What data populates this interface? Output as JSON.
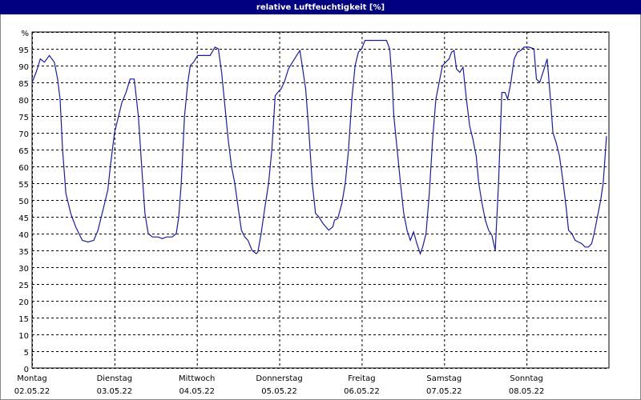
{
  "chart_data": {
    "type": "line",
    "title": "relative Luftfeuchtigkeit [%]",
    "x": [
      0,
      0.05,
      0.1,
      0.15,
      0.21,
      0.27,
      0.31,
      0.34,
      0.37,
      0.41,
      0.47,
      0.53,
      0.61,
      0.68,
      0.75,
      0.8,
      0.86,
      0.92,
      0.95,
      1.0,
      1.05,
      1.09,
      1.14,
      1.19,
      1.24,
      1.29,
      1.33,
      1.37,
      1.41,
      1.46,
      1.53,
      1.58,
      1.63,
      1.7,
      1.75,
      1.78,
      1.81,
      1.85,
      1.89,
      1.92,
      1.96,
      2.01,
      2.09,
      2.16,
      2.22,
      2.26,
      2.3,
      2.34,
      2.38,
      2.42,
      2.46,
      2.5,
      2.54,
      2.58,
      2.62,
      2.67,
      2.72,
      2.74,
      2.78,
      2.82,
      2.87,
      2.91,
      2.95,
      2.98,
      3.02,
      3.06,
      3.11,
      3.16,
      3.21,
      3.25,
      3.29,
      3.32,
      3.36,
      3.4,
      3.44,
      3.48,
      3.53,
      3.6,
      3.65,
      3.67,
      3.71,
      3.76,
      3.8,
      3.84,
      3.88,
      3.92,
      3.96,
      4.0,
      4.04,
      4.13,
      4.23,
      4.3,
      4.34,
      4.37,
      4.39,
      4.43,
      4.47,
      4.51,
      4.55,
      4.59,
      4.63,
      4.67,
      4.71,
      4.74,
      4.78,
      4.82,
      4.86,
      4.9,
      4.94,
      4.98,
      5.02,
      5.06,
      5.09,
      5.12,
      5.15,
      5.19,
      5.23,
      5.27,
      5.31,
      5.35,
      5.39,
      5.42,
      5.46,
      5.5,
      5.54,
      5.58,
      5.62,
      5.66,
      5.7,
      5.74,
      5.77,
      5.81,
      5.85,
      5.89,
      5.93,
      5.97,
      6.03,
      6.09,
      6.12,
      6.16,
      6.2,
      6.25,
      6.29,
      6.32,
      6.36,
      6.4,
      6.44,
      6.48,
      6.51,
      6.55,
      6.59,
      6.63,
      6.67,
      6.71,
      6.75,
      6.79,
      6.82,
      6.86,
      6.9,
      6.93,
      6.95,
      6.97
    ],
    "series": [
      {
        "color": "#1a1ab8",
        "values": [
          85,
          88,
          92,
          91,
          93,
          91,
          86,
          80,
          65,
          52,
          46,
          42,
          38,
          37.5,
          38,
          41,
          47,
          53,
          60,
          70,
          75,
          79,
          82,
          86,
          86,
          75,
          60,
          46,
          40,
          39,
          39,
          38.5,
          39,
          39,
          40,
          45,
          55,
          75,
          85,
          90,
          91,
          93,
          93,
          93,
          95.5,
          95,
          88,
          78,
          68,
          60,
          55,
          48,
          41,
          39,
          38,
          35,
          34,
          34.5,
          40,
          47,
          55,
          65,
          81,
          82,
          83,
          85,
          89,
          91,
          93,
          94.5,
          88,
          83,
          70,
          55,
          46,
          45,
          43,
          41,
          42,
          44,
          44.5,
          49,
          55,
          65,
          80,
          90,
          94,
          95,
          97.5,
          97.5,
          97.5,
          97.5,
          95,
          85,
          75,
          65,
          55,
          46,
          41,
          38,
          40.5,
          37,
          34,
          36,
          40,
          52,
          68,
          80,
          85,
          90,
          91,
          92,
          94,
          94.5,
          89,
          88,
          89.5,
          80,
          72,
          68,
          63,
          55,
          49,
          44,
          41,
          39.5,
          35,
          55,
          82,
          82,
          80,
          85,
          92,
          94,
          94.5,
          95.5,
          95.5,
          95,
          86,
          85,
          88,
          92,
          80,
          70,
          67,
          63,
          56,
          48,
          41,
          40,
          38,
          37.5,
          37,
          36,
          36,
          37,
          40,
          45,
          50,
          55,
          62,
          69
        ]
      }
    ],
    "xlim": [
      0,
      7
    ],
    "xticks": [
      0,
      1,
      2,
      3,
      4,
      5,
      6
    ],
    "xtick_labels": [
      {
        "day": "Montag",
        "date": "02.05.22"
      },
      {
        "day": "Dienstag",
        "date": "03.05.22"
      },
      {
        "day": "Mittwoch",
        "date": "04.05.22"
      },
      {
        "day": "Donnerstag",
        "date": "05.05.22"
      },
      {
        "day": "Freitag",
        "date": "06.05.22"
      },
      {
        "day": "Samstag",
        "date": "07.05.22"
      },
      {
        "day": "Sonntag",
        "date": "08.05.22"
      }
    ],
    "ylim": [
      0,
      100
    ],
    "yticks": [
      0,
      5,
      10,
      15,
      20,
      25,
      30,
      35,
      40,
      45,
      50,
      55,
      60,
      65,
      70,
      75,
      80,
      85,
      90,
      95,
      {
        "value": 100,
        "label": "%"
      }
    ],
    "grid": true
  }
}
